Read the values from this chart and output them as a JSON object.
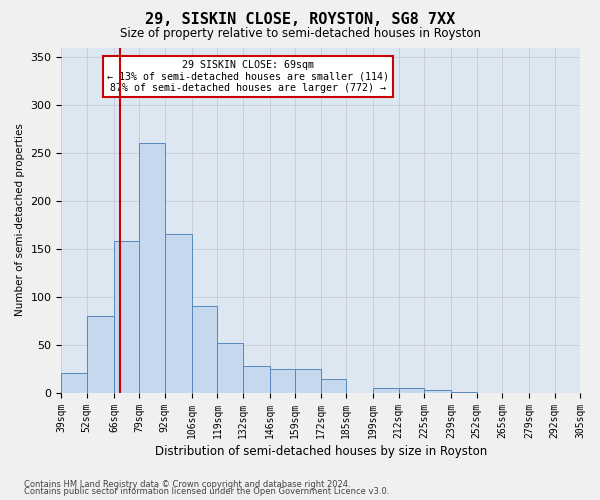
{
  "title": "29, SISKIN CLOSE, ROYSTON, SG8 7XX",
  "subtitle": "Size of property relative to semi-detached houses in Royston",
  "xlabel": "Distribution of semi-detached houses by size in Royston",
  "ylabel": "Number of semi-detached properties",
  "footer1": "Contains HM Land Registry data © Crown copyright and database right 2024.",
  "footer2": "Contains public sector information licensed under the Open Government Licence v3.0.",
  "annotation_title": "29 SISKIN CLOSE: 69sqm",
  "annotation_line1": "← 13% of semi-detached houses are smaller (114)",
  "annotation_line2": "87% of semi-detached houses are larger (772) →",
  "bar_color": "#c5d8ee",
  "bar_edge_color": "#5588bb",
  "grid_color": "#ccccdd",
  "bg_color": "#dde7f2",
  "fig_color": "#f0f0f0",
  "annotation_box_edge": "#cc0000",
  "vline_color": "#cc0000",
  "bin_labels": [
    "39sqm",
    "52sqm",
    "66sqm",
    "79sqm",
    "92sqm",
    "106sqm",
    "119sqm",
    "132sqm",
    "146sqm",
    "159sqm",
    "172sqm",
    "185sqm",
    "199sqm",
    "212sqm",
    "225sqm",
    "239sqm",
    "252sqm",
    "265sqm",
    "279sqm",
    "292sqm",
    "305sqm"
  ],
  "bin_edges_sqm": [
    39,
    52,
    66,
    79,
    92,
    106,
    119,
    132,
    146,
    159,
    172,
    185,
    199,
    212,
    225,
    239,
    252,
    265,
    279,
    292,
    305
  ],
  "counts": [
    20,
    80,
    158,
    260,
    165,
    90,
    52,
    28,
    25,
    25,
    14,
    0,
    5,
    5,
    3,
    1,
    0,
    0,
    0,
    0
  ],
  "property_sqm": 69,
  "ylim": [
    0,
    360
  ],
  "yticks": [
    0,
    50,
    100,
    150,
    200,
    250,
    300,
    350
  ],
  "title_fontsize": 11,
  "subtitle_fontsize": 8.5,
  "xlabel_fontsize": 8.5,
  "ylabel_fontsize": 7.5,
  "tick_fontsize": 7,
  "footer_fontsize": 6
}
